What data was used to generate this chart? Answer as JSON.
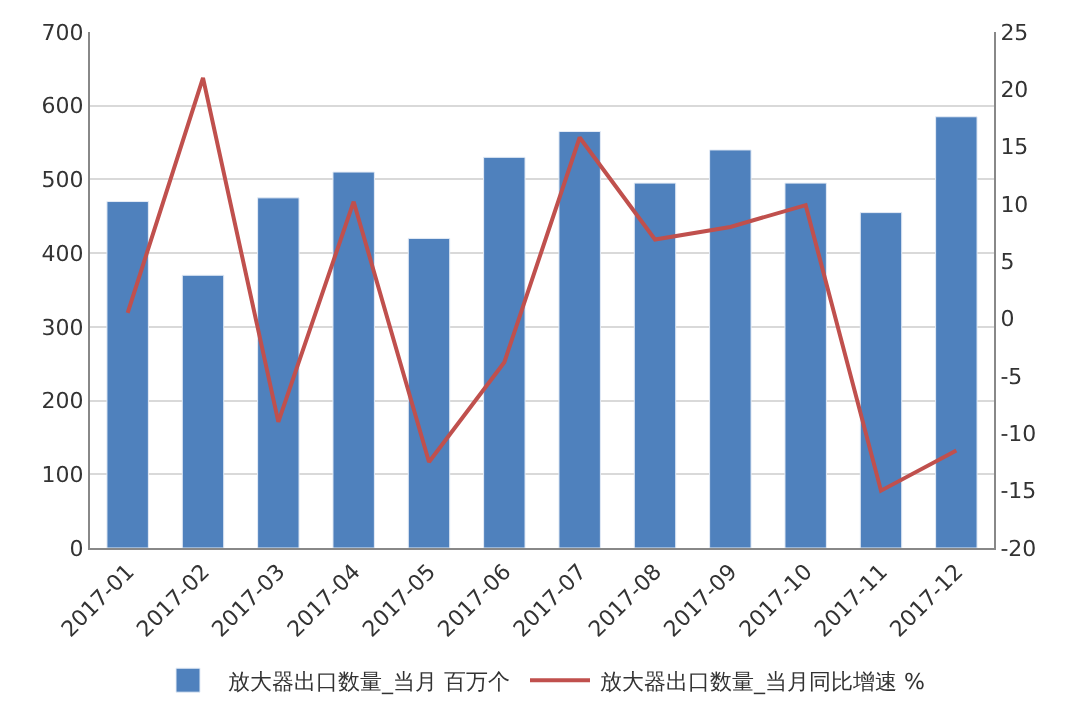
{
  "chart_data": {
    "type": "bar",
    "categories": [
      "2017-01",
      "2017-02",
      "2017-03",
      "2017-04",
      "2017-05",
      "2017-06",
      "2017-07",
      "2017-08",
      "2017-09",
      "2017-10",
      "2017-11",
      "2017-12"
    ],
    "series": [
      {
        "name": "放大器出口数量_当月 百万个",
        "color": "#4f81bd",
        "values": [
          470,
          370,
          475,
          510,
          420,
          530,
          565,
          495,
          540,
          495,
          455,
          585
        ]
      },
      {
        "name": "放大器出口数量_当月同比增速 %",
        "color": "#c0504d",
        "type": "line",
        "axis": "y2",
        "values": [
          0.5,
          21,
          -9,
          10.2,
          -12.5,
          -3.8,
          15.8,
          6.9,
          8,
          9.9,
          -15,
          -11.5
        ]
      }
    ],
    "ylim": [
      0,
      700
    ],
    "yticks": [
      0,
      100,
      200,
      300,
      400,
      500,
      600,
      700
    ],
    "y2lim": [
      -20,
      25
    ],
    "y2ticks": [
      -20,
      -15,
      -10,
      -5,
      0,
      5,
      10,
      15,
      20,
      25
    ],
    "grid": "y",
    "legend": "bottom",
    "marker": "none",
    "line_style": "solid"
  }
}
